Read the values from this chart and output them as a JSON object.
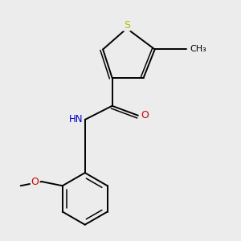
{
  "background_color": "#ececec",
  "atom_colors": {
    "S": "#b8b800",
    "N": "#0000cc",
    "O": "#cc0000",
    "C": "#000000"
  },
  "figsize": [
    3.0,
    3.0
  ],
  "dpi": 100,
  "lw": 1.4,
  "lw2": 1.1,
  "fs": 8.5,
  "xlim": [
    -2.8,
    2.8
  ],
  "ylim": [
    -3.2,
    2.2
  ]
}
